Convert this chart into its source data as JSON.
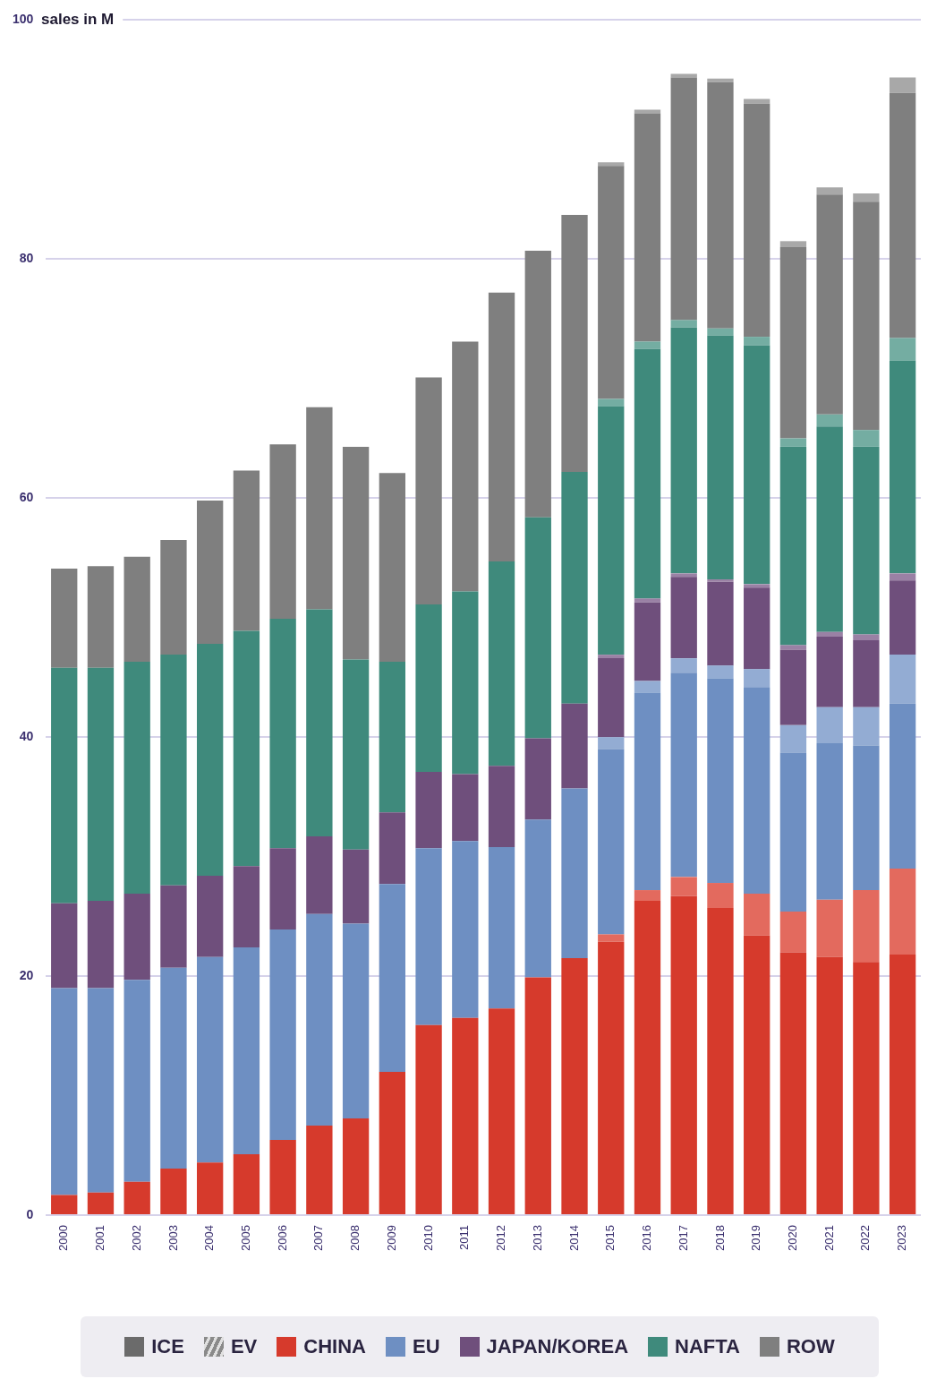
{
  "chart_data": {
    "type": "bar",
    "stacked": true,
    "ylabel": "sales in M",
    "categories": [
      "2000",
      "2001",
      "2002",
      "2003",
      "2004",
      "2005",
      "2006",
      "2007",
      "2008",
      "2009",
      "2010",
      "2011",
      "2012",
      "2013",
      "2014",
      "2015",
      "2016",
      "2017",
      "2018",
      "2019",
      "2020",
      "2021",
      "2022",
      "2023"
    ],
    "ylim": [
      0,
      100
    ],
    "yticks": [
      0,
      20,
      40,
      60,
      80,
      100
    ],
    "grid": "y",
    "legend": "bottom",
    "annotations": [
      "ICE",
      "EV"
    ],
    "series": [
      {
        "name": "CHINA",
        "color": "#d63a2c",
        "values": [
          1.7,
          1.9,
          2.8,
          3.9,
          4.4,
          5.1,
          6.3,
          7.5,
          8.1,
          12.0,
          15.9,
          16.5,
          17.3,
          19.9,
          21.5,
          22.9,
          26.3,
          26.7,
          25.7,
          23.4,
          22.0,
          21.6,
          21.2,
          21.8
        ]
      },
      {
        "color": "#e36a5e",
        "values": [
          0,
          0,
          0,
          0,
          0,
          0,
          0,
          0,
          0,
          0,
          0,
          0,
          0,
          0,
          0,
          0.6,
          0.9,
          1.6,
          2.1,
          3.5,
          3.4,
          4.8,
          6.0,
          7.2
        ]
      },
      {
        "name": "EU",
        "color": "#6e8fc2",
        "values": [
          17.3,
          17.1,
          16.9,
          16.8,
          17.2,
          17.3,
          17.6,
          17.7,
          16.3,
          15.7,
          14.8,
          14.8,
          13.5,
          13.2,
          14.2,
          15.5,
          16.5,
          17.1,
          17.1,
          17.3,
          13.3,
          13.1,
          12.1,
          13.8
        ]
      },
      {
        "color": "#93acd3",
        "values": [
          0,
          0,
          0,
          0,
          0,
          0,
          0,
          0,
          0,
          0,
          0,
          0,
          0,
          0,
          0,
          1.0,
          1.0,
          1.2,
          1.1,
          1.5,
          2.3,
          3.0,
          3.2,
          4.1
        ]
      },
      {
        "name": "JAPAN/KOREA",
        "color": "#6f4f7c",
        "values": [
          7.1,
          7.3,
          7.2,
          6.9,
          6.8,
          6.8,
          6.8,
          6.5,
          6.2,
          6.0,
          6.4,
          5.6,
          6.8,
          6.8,
          7.1,
          6.6,
          6.6,
          6.8,
          7.0,
          6.8,
          6.3,
          5.9,
          5.6,
          6.2
        ]
      },
      {
        "color": "#9a81a5",
        "values": [
          0,
          0,
          0,
          0,
          0,
          0,
          0,
          0,
          0,
          0,
          0,
          0,
          0,
          0,
          0,
          0.3,
          0.3,
          0.3,
          0.2,
          0.3,
          0.4,
          0.4,
          0.5,
          0.6
        ]
      },
      {
        "name": "NAFTA",
        "color": "#3f8a7c",
        "values": [
          19.7,
          19.5,
          19.4,
          19.3,
          19.4,
          19.7,
          19.2,
          19.0,
          15.9,
          12.6,
          14.0,
          15.3,
          17.1,
          18.5,
          19.4,
          20.8,
          20.9,
          20.6,
          20.4,
          20.0,
          16.6,
          17.2,
          15.7,
          17.8
        ]
      },
      {
        "color": "#74ada2",
        "values": [
          0,
          0,
          0,
          0,
          0,
          0,
          0,
          0,
          0,
          0,
          0,
          0,
          0,
          0,
          0,
          0.6,
          0.6,
          0.6,
          0.6,
          0.7,
          0.7,
          1.0,
          1.4,
          1.9
        ]
      },
      {
        "name": "ROW",
        "color": "#7f7f7f",
        "values": [
          8.3,
          8.5,
          8.8,
          9.6,
          12.0,
          13.4,
          14.6,
          16.9,
          17.8,
          15.8,
          19.0,
          20.9,
          22.5,
          22.3,
          21.5,
          19.5,
          19.1,
          20.3,
          20.6,
          19.5,
          16.0,
          18.4,
          19.1,
          20.5
        ]
      },
      {
        "color": "#a8a8a8",
        "values": [
          0,
          0,
          0,
          0,
          0,
          0,
          0,
          0,
          0,
          0,
          0,
          0,
          0,
          0,
          0,
          0.3,
          0.3,
          0.3,
          0.3,
          0.4,
          0.5,
          0.6,
          0.7,
          1.3
        ]
      }
    ]
  }
}
